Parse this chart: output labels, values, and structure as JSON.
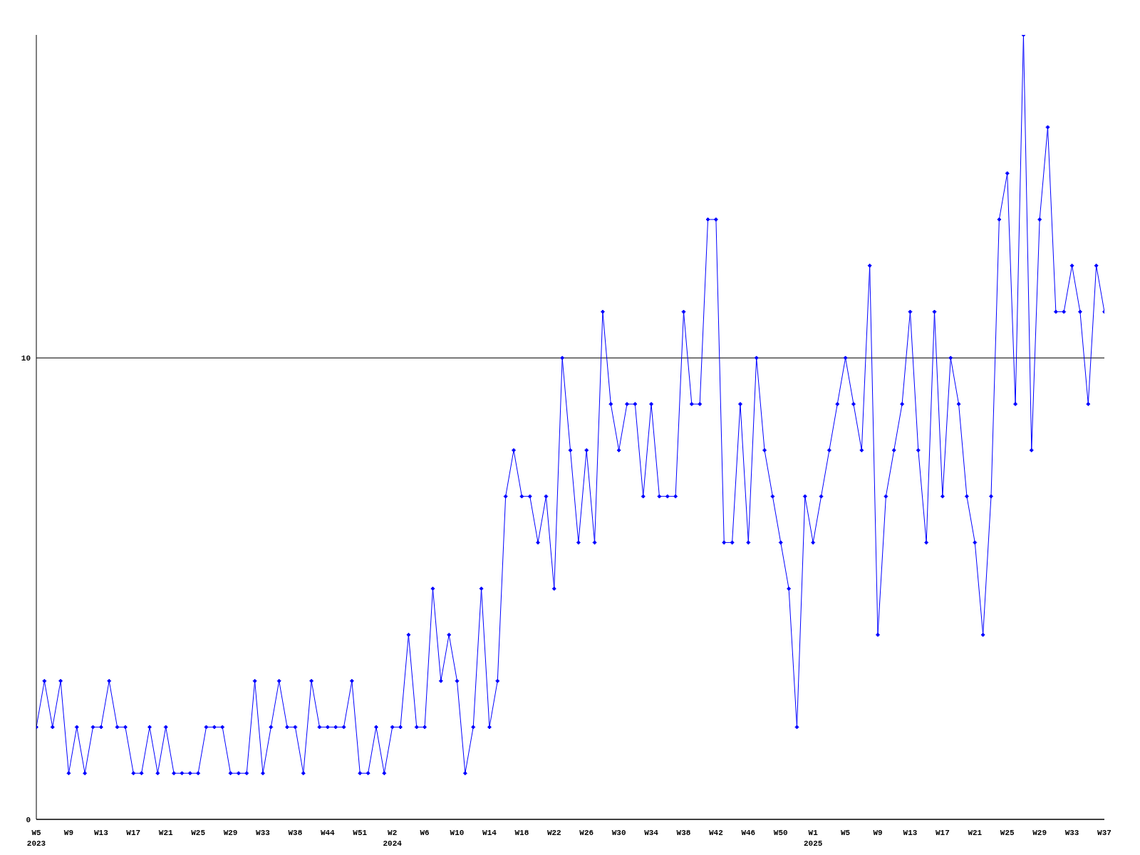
{
  "chart_data": {
    "type": "line",
    "categories": [
      "W5\n2023",
      null,
      null,
      null,
      "W9",
      null,
      null,
      null,
      "W13",
      null,
      null,
      null,
      "W17",
      null,
      null,
      null,
      "W21",
      null,
      null,
      null,
      "W25",
      null,
      null,
      null,
      "W29",
      null,
      null,
      null,
      "W33",
      null,
      null,
      null,
      "W38",
      null,
      null,
      null,
      "W44",
      null,
      null,
      null,
      "W51",
      null,
      null,
      null,
      "W2\n2024",
      null,
      null,
      null,
      "W6",
      null,
      null,
      null,
      "W10",
      null,
      null,
      null,
      "W14",
      null,
      null,
      null,
      "W18",
      null,
      null,
      null,
      "W22",
      null,
      null,
      null,
      "W26",
      null,
      null,
      null,
      "W30",
      null,
      null,
      null,
      "W34",
      null,
      null,
      null,
      "W38",
      null,
      null,
      null,
      "W42",
      null,
      null,
      null,
      "W46",
      null,
      null,
      null,
      "W50",
      null,
      null,
      null,
      "W1\n2025",
      null,
      null,
      null,
      "W5",
      null,
      null,
      null,
      "W9",
      null,
      null,
      null,
      "W13",
      null,
      null,
      null,
      "W17",
      null,
      null,
      null,
      "W21",
      null,
      null,
      null,
      "W25",
      null,
      null,
      null,
      "W29",
      null,
      null,
      null,
      "W33",
      null,
      null,
      null,
      "W37"
    ],
    "series": [
      {
        "color": "#0000ff",
        "values": [
          2,
          3,
          2,
          3,
          1,
          2,
          1,
          2,
          2,
          3,
          2,
          2,
          1,
          1,
          2,
          1,
          2,
          1,
          1,
          1,
          1,
          2,
          2,
          2,
          1,
          1,
          1,
          3,
          1,
          2,
          3,
          2,
          2,
          1,
          3,
          2,
          2,
          2,
          2,
          3,
          1,
          1,
          2,
          1,
          2,
          2,
          4,
          2,
          2,
          5,
          3,
          4,
          3,
          1,
          2,
          5,
          2,
          3,
          7,
          8,
          7,
          7,
          6,
          7,
          5,
          10,
          8,
          6,
          8,
          6,
          11,
          9,
          8,
          9,
          9,
          7,
          9,
          7,
          7,
          7,
          11,
          9,
          9,
          13,
          13,
          6,
          6,
          9,
          6,
          10,
          8,
          7,
          6,
          5,
          2,
          7,
          6,
          7,
          8,
          9,
          10,
          9,
          8,
          12,
          4,
          7,
          8,
          9,
          11,
          8,
          6,
          11,
          7,
          10,
          9,
          7,
          6,
          4,
          7,
          13,
          14,
          9,
          17,
          8,
          13,
          15,
          11,
          11,
          12,
          11,
          9,
          12,
          11
        ]
      }
    ],
    "ylim": [
      0,
      17
    ],
    "yticks": [
      0,
      10
    ],
    "grid": "y",
    "marker": "diamond",
    "line_style": "solid"
  }
}
